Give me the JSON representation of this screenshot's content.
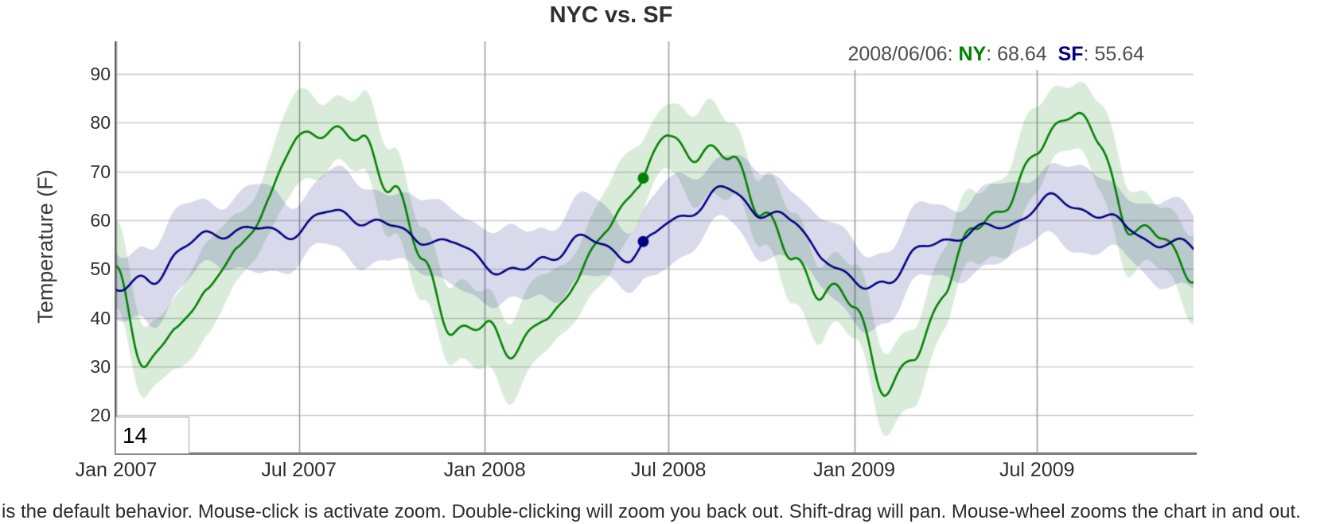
{
  "page": {
    "footer_note": "is the default behavior. Mouse-click is activate zoom. Double-clicking will zoom you back out. Shift-drag will pan. Mouse-wheel zooms the chart in and out."
  },
  "legend": {
    "date": "2008/06/06",
    "colon": ": ",
    "gap": "  ",
    "ny_label": "NY",
    "ny_value": "68.64",
    "sf_label": "SF",
    "sf_value": "55.64",
    "ny_color": "#008000",
    "sf_color": "#000080",
    "text_color": "#4d4d4d"
  },
  "roller": {
    "value": "14"
  },
  "chart_data": {
    "type": "line",
    "title": "NYC vs. SF",
    "ylabel": "Temperature (F)",
    "y_ticks": [
      20,
      30,
      40,
      50,
      60,
      70,
      80,
      90
    ],
    "ylim": [
      12.36,
      96.7
    ],
    "x_ticks": [
      {
        "label": "Jan 2007",
        "day": 0
      },
      {
        "label": "Jul 2007",
        "day": 181
      },
      {
        "label": "Jan 2008",
        "day": 365
      },
      {
        "label": "Jul 2008",
        "day": 547
      },
      {
        "label": "Jan 2009",
        "day": 731
      },
      {
        "label": "Jul 2009",
        "day": 912
      }
    ],
    "x_total_days": 1067,
    "anchor_days": [
      0,
      31,
      59,
      90,
      120,
      151,
      181,
      212,
      243,
      273,
      304,
      334,
      365,
      396,
      425,
      456,
      486,
      517,
      547,
      578,
      609,
      639,
      670,
      700,
      731,
      762,
      790,
      821,
      851,
      882,
      912,
      943,
      974,
      1004,
      1035,
      1065
    ],
    "series": [
      {
        "name": "NY",
        "color": "#008000",
        "fill_alpha": 0.15,
        "band_halfwidth": 8,
        "monthly_values": [
          48,
          30,
          34,
          48,
          57,
          67,
          74,
          79,
          75,
          65,
          50,
          42,
          40,
          33,
          38,
          49,
          54,
          66,
          79,
          78,
          72,
          63,
          52,
          44,
          38,
          27,
          34,
          48,
          58,
          66,
          72,
          79,
          74,
          62,
          57,
          50
        ],
        "noise": {
          "periods": [
            4.9,
            9.7,
            17.5,
            37
          ],
          "amps": [
            1.0,
            1.6,
            2.0,
            2.2
          ],
          "phases": [
            0.8,
            2.2,
            4.1,
            1.4
          ]
        }
      },
      {
        "name": "SF",
        "color": "#000080",
        "fill_alpha": 0.15,
        "band_halfwidth": 7.5,
        "monthly_values": [
          46,
          50,
          53,
          54,
          56,
          58,
          59,
          61,
          62,
          61,
          57,
          52,
          50,
          49,
          52,
          55,
          56,
          56,
          60,
          61,
          65,
          62,
          58,
          52,
          48,
          51,
          53,
          55,
          57,
          59,
          61,
          62,
          63,
          61,
          56,
          53
        ],
        "noise": {
          "periods": [
            5.3,
            10.4,
            19,
            41
          ],
          "amps": [
            0.7,
            1.2,
            1.5,
            1.6
          ],
          "phases": [
            3.2,
            0.5,
            2.7,
            5.1
          ]
        }
      }
    ],
    "highlight": {
      "date": "2008/06/06",
      "day": 522,
      "values": {
        "NY": 68.64,
        "SF": 55.64
      },
      "dot_radius": 7
    },
    "grid": {
      "h_color": "#cccccc",
      "v_color": "#999999"
    },
    "legend_position": "top-right",
    "grid_on": true
  }
}
